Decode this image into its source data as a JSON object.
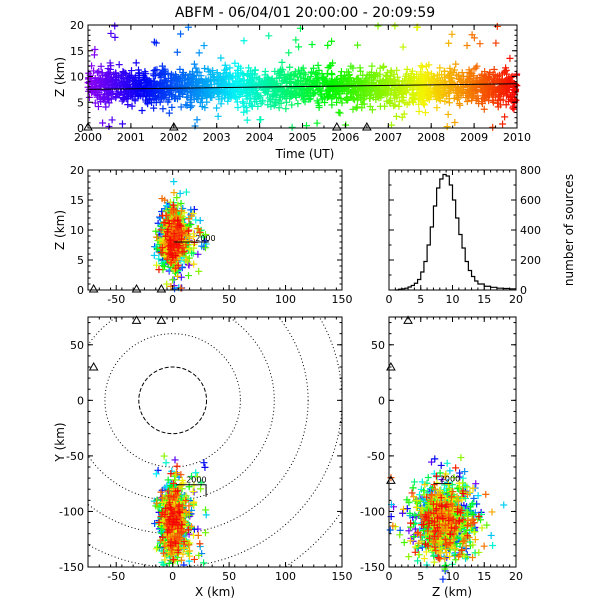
{
  "title": "ABFM - 06/04/01 20:00:00 - 20:09:59",
  "chart_data": [
    {
      "id": "time_height",
      "type": "scatter",
      "xlabel": "Time (UT)",
      "ylabel": "Z (km)",
      "xticks": [
        "2000",
        "2001",
        "2002",
        "2003",
        "2004",
        "2005",
        "2006",
        "2007",
        "2008",
        "2009",
        "2010"
      ],
      "yticks": [
        "0",
        "5",
        "10",
        "15",
        "20"
      ],
      "xlim": [
        2000,
        2010
      ],
      "ylim": [
        0,
        20
      ],
      "color_encoding": "time rainbow (purple to red)",
      "trend_line": {
        "x": [
          2000,
          2010
        ],
        "y": [
          7.5,
          8.6
        ]
      },
      "station_markers_x": [
        2000,
        2002,
        2005.8,
        2006.5
      ]
    },
    {
      "id": "x_z",
      "type": "scatter",
      "ylabel": "Z (km)",
      "xticks": [
        "-50",
        "0",
        "50",
        "100",
        "150"
      ],
      "yticks": [
        "0",
        "5",
        "10",
        "15",
        "20"
      ],
      "xlim": [
        -75,
        150
      ],
      "ylim": [
        0,
        20
      ],
      "cluster_center": {
        "x": 1,
        "z": 9
      },
      "annotation": "2000",
      "station_markers_x": [
        -70,
        -32,
        -10
      ]
    },
    {
      "id": "altitude_histogram",
      "type": "line",
      "ylabel": "number of sources",
      "xticks": [
        "0",
        "5",
        "10",
        "15",
        "20"
      ],
      "yticks": [
        "0",
        "200",
        "400",
        "600",
        "800"
      ],
      "xlim": [
        0,
        20
      ],
      "ylim": [
        0,
        800
      ],
      "x": [
        1,
        1.5,
        2,
        2.5,
        3,
        3.5,
        4,
        4.5,
        5,
        5.5,
        6,
        6.5,
        7,
        7.5,
        8,
        8.5,
        9,
        9.5,
        10,
        10.5,
        11,
        11.5,
        12,
        12.5,
        13,
        13.5,
        14,
        15,
        16,
        17,
        18,
        19,
        20
      ],
      "y": [
        0,
        5,
        8,
        12,
        20,
        30,
        45,
        70,
        120,
        190,
        300,
        420,
        560,
        680,
        740,
        770,
        760,
        700,
        600,
        480,
        370,
        280,
        190,
        130,
        90,
        60,
        40,
        25,
        18,
        12,
        10,
        8,
        8
      ]
    },
    {
      "id": "plan_view",
      "type": "scatter",
      "xlabel": "X (km)",
      "ylabel": "Y (km)",
      "xticks": [
        "-50",
        "0",
        "50",
        "100",
        "150"
      ],
      "yticks": [
        "-150",
        "-100",
        "-50",
        "0",
        "50"
      ],
      "xlim": [
        -75,
        150
      ],
      "ylim": [
        -150,
        75
      ],
      "range_rings_km": [
        30,
        60,
        90,
        120,
        150,
        180
      ],
      "cluster_center": {
        "x": 0,
        "y": -108
      },
      "annotation": "2000",
      "station_markers": [
        {
          "x": -70,
          "y": 30
        },
        {
          "x": -32,
          "y": 72
        },
        {
          "x": -10,
          "y": 72
        }
      ]
    },
    {
      "id": "y_z",
      "type": "scatter",
      "xlabel": "Z (km)",
      "xticks": [
        "0",
        "5",
        "10",
        "15",
        "20"
      ],
      "yticks": [
        "-150",
        "-100",
        "-50",
        "0",
        "50"
      ],
      "xlim": [
        0,
        20
      ],
      "ylim": [
        -150,
        75
      ],
      "cluster_center": {
        "z": 9,
        "y": -105
      },
      "annotation": "2000",
      "station_markers": [
        {
          "z": 0.3,
          "y": 30
        },
        {
          "z": 0.3,
          "y": -72
        },
        {
          "z": 3,
          "y": 72
        }
      ]
    }
  ]
}
